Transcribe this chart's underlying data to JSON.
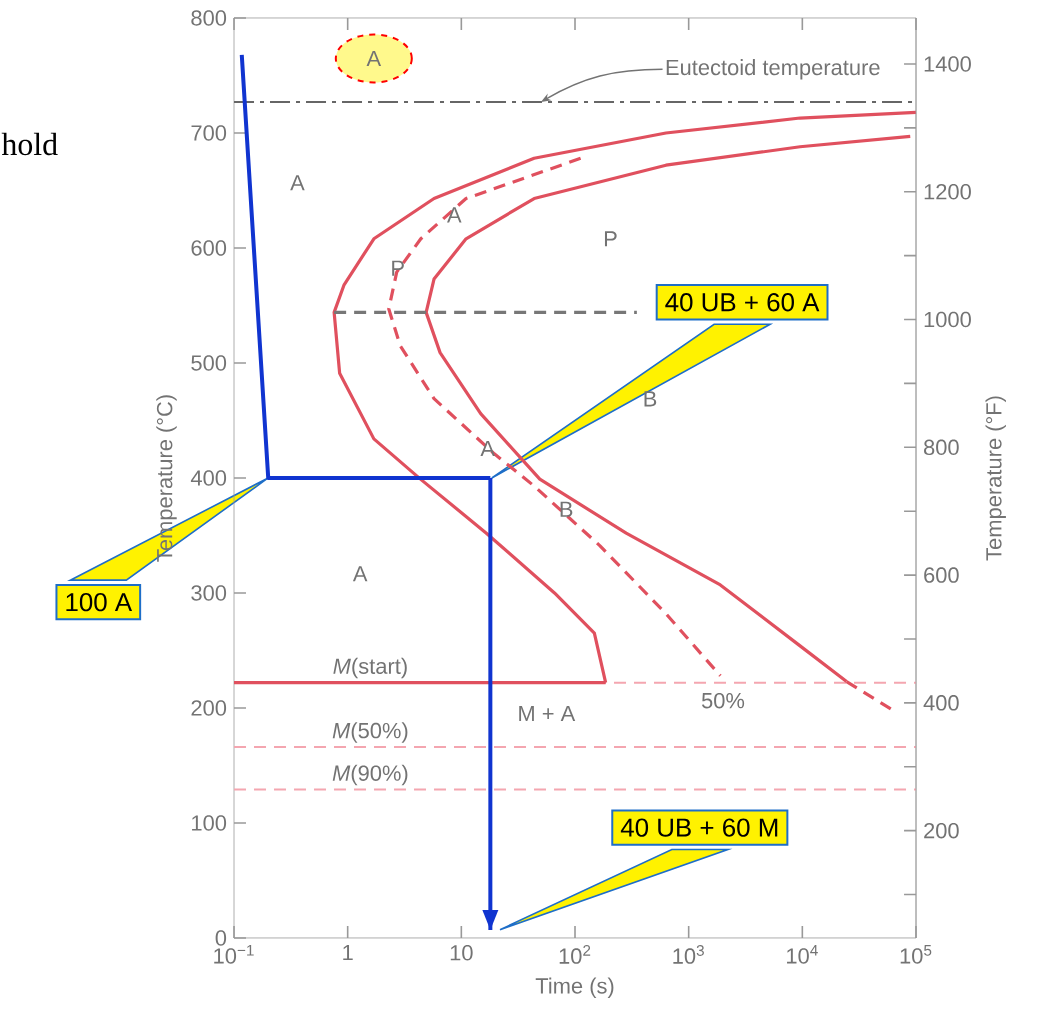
{
  "chart_data": {
    "type": "line",
    "xlabel": "Time (s)",
    "ylabel": "Temperature (°C)",
    "y2label": "Temperature (°F)",
    "log": "x",
    "grid": false,
    "xlim": [
      0.1,
      100000
    ],
    "ylim": [
      0,
      800
    ],
    "y2lim": [
      32,
      1472
    ],
    "xticks": [
      {
        "value": 0.1,
        "label": "10$^{−1}$"
      },
      1,
      10,
      {
        "value": 100,
        "label": "10$^{2}$"
      },
      {
        "value": 1000,
        "label": "10$^{3}$"
      },
      {
        "value": 10000,
        "label": "10$^{4}$"
      },
      {
        "value": 100000,
        "label": "10$^{5}$"
      }
    ],
    "yticks": [
      0,
      100,
      200,
      300,
      400,
      500,
      600,
      700,
      800
    ],
    "y2ticks": [
      {
        "value": 100,
        "label": null
      },
      200,
      {
        "value": 300,
        "label": null
      },
      400,
      {
        "value": 500,
        "label": null
      },
      600,
      {
        "value": 700,
        "label": null
      },
      800,
      {
        "value": 900,
        "label": null
      },
      1000,
      {
        "value": 1100,
        "label": null
      },
      1200,
      {
        "value": 1300,
        "label": null
      },
      1400
    ],
    "series": [
      {
        "color": "#e0505e",
        "line_style": "solid",
        "x": [
          100000,
          9550,
          631,
          43.7,
          5.75,
          1.7,
          0.93,
          0.76,
          0.85,
          1.7,
          4.37,
          16.6,
          66,
          148,
          186
        ],
        "values": [
          718,
          713,
          700,
          678,
          643,
          608,
          568,
          544,
          491,
          434,
          399,
          352,
          300,
          265,
          222
        ]
      },
      {
        "color": "#e0505e",
        "line_style": "solid",
        "x": [
          0.1,
          186
        ],
        "values": [
          222,
          222
        ]
      },
      {
        "color": "#e0505e",
        "line_style": "dashed",
        "x": [
          112,
          11,
          4.4,
          2.7,
          2.3,
          2.9,
          5.75,
          19.5,
          43.7,
          166,
          631,
          1900
        ],
        "values": [
          678,
          643,
          608,
          579,
          547,
          515,
          469,
          421,
          393,
          341,
          282,
          228
        ]
      },
      {
        "color": "#e0505e",
        "line_style": "solid",
        "x": [
          89000,
          9550,
          631,
          43.7,
          11,
          5.75,
          4.9,
          6.5,
          14.8,
          49,
          282,
          1900,
          9550,
          24500
        ],
        "values": [
          697,
          688,
          672,
          643,
          608,
          573,
          544,
          509,
          456,
          399,
          352,
          307,
          254,
          223
        ]
      },
      {
        "color": "#e0505e",
        "line_style": "dashed",
        "x": [
          24500,
          65000
        ],
        "values": [
          223,
          197
        ]
      },
      {
        "color": "#777777",
        "line_style": "dashed",
        "x": [
          0.76,
          350
        ],
        "values": [
          544,
          544
        ]
      },
      {
        "color": "#1034d0",
        "line_style": "solid",
        "x": [
          0.117,
          0.2,
          18
        ],
        "values": [
          768,
          400,
          400
        ]
      },
      {
        "color": "#1034d0",
        "line_style": "solid",
        "x": [
          18,
          18
        ],
        "values": [
          400,
          7
        ]
      }
    ],
    "ref_lines": [
      {
        "axis": "y",
        "value": 727,
        "label": "Eutectoid temperature",
        "color": "#666666",
        "line_style": "dashdot"
      },
      {
        "axis": "y",
        "value": 222,
        "label": "*M*(start)",
        "color": "#f4a6b0",
        "line_style": "dashed"
      },
      {
        "axis": "y",
        "value": 166,
        "label": "*M*(50%)",
        "color": "#f4a6b0",
        "line_style": "dashed"
      },
      {
        "axis": "y",
        "value": 129,
        "label": "*M*(90%)",
        "color": "#f4a6b0",
        "line_style": "dashed"
      }
    ],
    "annotations": [
      "hold",
      "A",
      "A",
      "A",
      "P",
      "P",
      "B",
      "A",
      "B",
      "A",
      "M + A",
      "50%",
      "100 A",
      "40 UB + 60 A",
      "40 UB + 60 M"
    ]
  }
}
